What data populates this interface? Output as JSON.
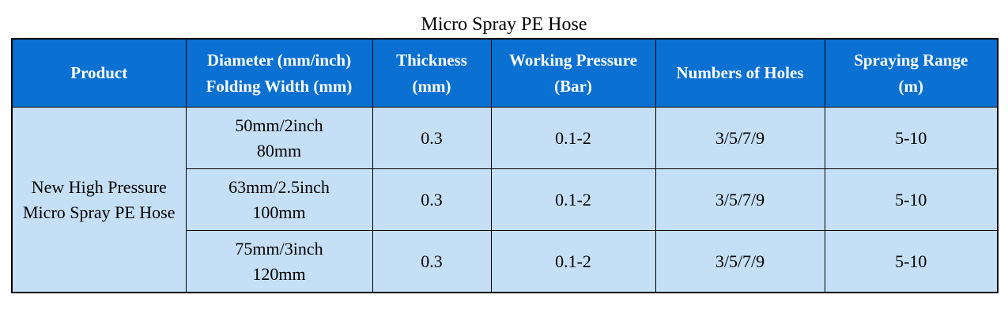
{
  "title": "Micro Spray PE Hose",
  "colors": {
    "header_bg": "#0a70d2",
    "header_text": "#ffffff",
    "body_bg": "#c5dff6",
    "body_text": "#000000",
    "border": "#000000"
  },
  "table": {
    "headers": [
      {
        "line1": "Product",
        "line2": ""
      },
      {
        "line1": "Diameter (mm/inch)",
        "line2": "Folding Width (mm)"
      },
      {
        "line1": "Thickness",
        "line2": "(mm)"
      },
      {
        "line1": "Working Pressure",
        "line2": "(Bar)"
      },
      {
        "line1": "Numbers of Holes",
        "line2": ""
      },
      {
        "line1": "Spraying Range",
        "line2": "(m)"
      }
    ],
    "product": "New High Pressure Micro Spray PE Hose",
    "rows": [
      {
        "diameter": "50mm/2inch",
        "folding_width": "80mm",
        "thickness": "0.3",
        "working_pressure": "0.1-2",
        "holes": "3/5/7/9",
        "spraying_range": "5-10"
      },
      {
        "diameter": "63mm/2.5inch",
        "folding_width": "100mm",
        "thickness": "0.3",
        "working_pressure": "0.1-2",
        "holes": "3/5/7/9",
        "spraying_range": "5-10"
      },
      {
        "diameter": "75mm/3inch",
        "folding_width": "120mm",
        "thickness": "0.3",
        "working_pressure": "0.1-2",
        "holes": "3/5/7/9",
        "spraying_range": "5-10"
      }
    ]
  }
}
